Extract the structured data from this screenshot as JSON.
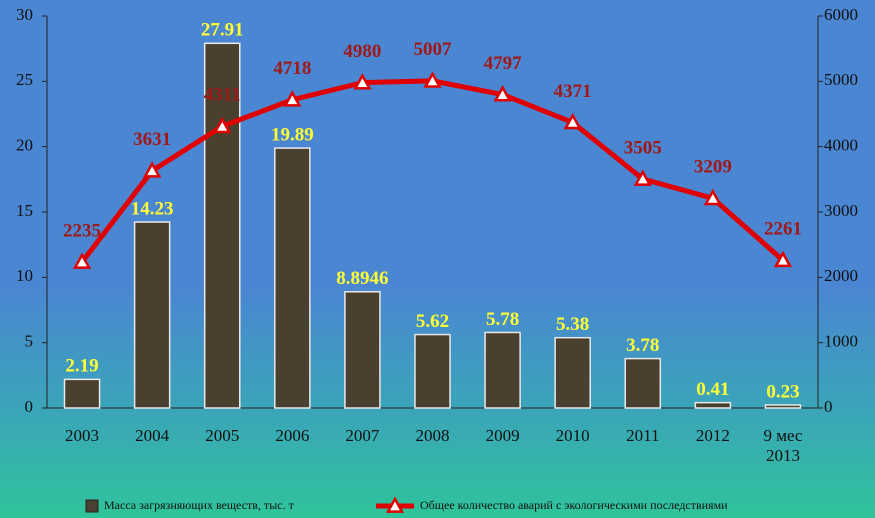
{
  "chart_data": {
    "type": "bar",
    "categories": [
      "2003",
      "2004",
      "2005",
      "2006",
      "2007",
      "2008",
      "2009",
      "2010",
      "2011",
      "2012",
      "9 мес 2013"
    ],
    "series": [
      {
        "name": "Масса загрязняющих веществ, тыс. т",
        "type": "bar",
        "color": "#4a4030",
        "label_color": "#ffff33",
        "values": [
          2.19,
          14.23,
          27.91,
          19.89,
          8.8946,
          5.62,
          5.78,
          5.38,
          3.78,
          0.41,
          0.23
        ]
      },
      {
        "name": "Общее количество аварий с экологическими последствиями",
        "type": "line",
        "axis": "y2",
        "color": "#e00000",
        "label_color": "#a01818",
        "values": [
          2235,
          3631,
          4311,
          4718,
          4980,
          5007,
          4797,
          4371,
          3505,
          3209,
          2261
        ]
      }
    ],
    "ylim": [
      0,
      30
    ],
    "yticks": [
      0,
      5,
      10,
      15,
      20,
      25,
      30
    ],
    "y2lim": [
      0,
      6000
    ],
    "y2ticks": [
      0,
      1000,
      2000,
      3000,
      4000,
      5000,
      6000
    ],
    "legend": "bottom"
  }
}
